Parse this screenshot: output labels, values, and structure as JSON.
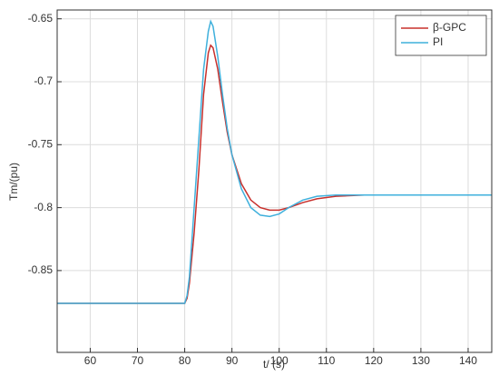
{
  "chart_data": {
    "type": "line",
    "xlabel": "t/ (s)",
    "ylabel": "Tm/(pu)",
    "x": [
      53,
      80,
      80.5,
      81,
      82,
      83,
      84,
      85,
      85.5,
      86,
      87,
      88,
      89,
      90,
      92,
      94,
      96,
      98,
      100,
      102,
      105,
      108,
      112,
      118,
      130,
      145
    ],
    "series": [
      {
        "name": "β-GPC",
        "color": "#c8302c",
        "values": [
          -0.876,
          -0.876,
          -0.872,
          -0.86,
          -0.82,
          -0.77,
          -0.71,
          -0.677,
          -0.671,
          -0.673,
          -0.69,
          -0.716,
          -0.74,
          -0.758,
          -0.781,
          -0.794,
          -0.8,
          -0.802,
          -0.802,
          -0.8,
          -0.796,
          -0.793,
          -0.791,
          -0.79,
          -0.79,
          -0.79
        ]
      },
      {
        "name": "PI",
        "color": "#3fb0dc",
        "values": [
          -0.876,
          -0.876,
          -0.87,
          -0.855,
          -0.8,
          -0.745,
          -0.69,
          -0.66,
          -0.652,
          -0.656,
          -0.68,
          -0.71,
          -0.737,
          -0.758,
          -0.785,
          -0.8,
          -0.806,
          -0.807,
          -0.805,
          -0.8,
          -0.794,
          -0.791,
          -0.79,
          -0.79,
          -0.79,
          -0.79
        ]
      }
    ],
    "xlim": [
      53,
      145
    ],
    "ylim": [
      -0.915,
      -0.643
    ],
    "xticks": [
      60,
      70,
      80,
      90,
      100,
      110,
      120,
      130,
      140
    ],
    "yticks": [
      -0.85,
      -0.8,
      -0.75,
      -0.7,
      -0.65
    ],
    "grid": true,
    "legend": "top-right"
  }
}
